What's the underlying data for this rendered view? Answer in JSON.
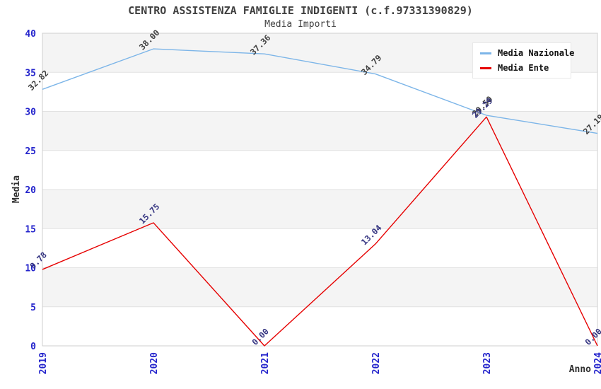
{
  "title": "CENTRO ASSISTENZA FAMIGLIE INDIGENTI (c.f.97331390829)",
  "subtitle": "Media Importi",
  "chart_data": {
    "type": "line",
    "x": [
      2019,
      2020,
      2021,
      2022,
      2023,
      2024
    ],
    "series": [
      {
        "name": "Media Nazionale",
        "color": "#7cb5e8",
        "label_color": "#404040",
        "values": [
          32.82,
          38.0,
          37.36,
          34.79,
          29.5,
          27.19
        ]
      },
      {
        "name": "Media Ente",
        "color": "#e60000",
        "label_color": "#333380",
        "values": [
          9.78,
          15.75,
          0.0,
          13.04,
          29.29,
          0.0
        ]
      }
    ],
    "xlabel": "Anno",
    "ylabel": "Media",
    "ylim": [
      0,
      40
    ],
    "ytick_step": 5,
    "grid": "horizontal-bands",
    "legend_position": "top-right",
    "band_color": "#f4f4f4",
    "gridline_color": "#e2e2e2",
    "plot_border_color": "#cfcfcf",
    "tick_label_color": "#2424cc"
  }
}
